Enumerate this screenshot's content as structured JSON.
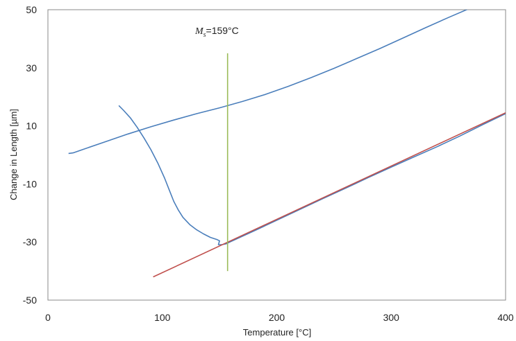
{
  "chart_data": {
    "type": "line",
    "title": "",
    "xlabel": "Temperature  [°C]",
    "ylabel": "Change in Length [µm]",
    "xlim": [
      0,
      400
    ],
    "ylim": [
      -50,
      50
    ],
    "x_ticks": [
      0,
      100,
      200,
      300,
      400
    ],
    "y_ticks": [
      -50,
      -30,
      -10,
      10,
      30,
      50
    ],
    "grid": false,
    "legend": "none",
    "annotation": {
      "symbol": "M",
      "subscript": "s",
      "text": "=159°C",
      "x": 159
    },
    "series": [
      {
        "color": "#4a7ebb",
        "points": [
          [
            18,
            0.5
          ],
          [
            22,
            0.7
          ],
          [
            30,
            1.8
          ],
          [
            50,
            4.5
          ],
          [
            70,
            7.2
          ],
          [
            90,
            9.7
          ],
          [
            110,
            12.0
          ],
          [
            130,
            14.2
          ],
          [
            150,
            16.2
          ],
          [
            170,
            18.4
          ],
          [
            190,
            20.8
          ],
          [
            210,
            23.6
          ],
          [
            230,
            26.6
          ],
          [
            250,
            29.8
          ],
          [
            270,
            33.2
          ],
          [
            290,
            36.6
          ],
          [
            310,
            40.2
          ],
          [
            330,
            43.8
          ],
          [
            350,
            47.3
          ],
          [
            370,
            50.7
          ],
          [
            387,
            53.5
          ]
        ]
      },
      {
        "color": "#4a7ebb",
        "points": [
          [
            62,
            17.0
          ],
          [
            66,
            15.4
          ],
          [
            72,
            12.8
          ],
          [
            78,
            9.5
          ],
          [
            84,
            5.8
          ],
          [
            90,
            1.8
          ],
          [
            96,
            -2.8
          ],
          [
            102,
            -8.0
          ],
          [
            106,
            -12.0
          ],
          [
            110,
            -16.0
          ],
          [
            114,
            -19.0
          ],
          [
            118,
            -21.5
          ],
          [
            124,
            -24.0
          ],
          [
            130,
            -25.8
          ],
          [
            136,
            -27.2
          ],
          [
            142,
            -28.4
          ],
          [
            148,
            -29.2
          ],
          [
            150,
            -29.6
          ],
          [
            149,
            -30.9
          ],
          [
            152,
            -30.9
          ],
          [
            156,
            -30.6
          ],
          [
            159,
            -30.0
          ],
          [
            180,
            -26.2
          ],
          [
            200,
            -22.5
          ],
          [
            220,
            -18.8
          ],
          [
            240,
            -15.1
          ],
          [
            260,
            -11.5
          ],
          [
            280,
            -7.8
          ],
          [
            300,
            -4.2
          ],
          [
            320,
            -0.7
          ],
          [
            340,
            2.8
          ],
          [
            360,
            6.5
          ],
          [
            380,
            10.4
          ],
          [
            400,
            14.2
          ]
        ]
      },
      {
        "color": "#c0504d",
        "points": [
          [
            92,
            -42.0
          ],
          [
            400,
            14.5
          ]
        ]
      },
      {
        "color": "#9bbb59",
        "points": [
          [
            157,
            35.0
          ],
          [
            157,
            -40.0
          ]
        ]
      }
    ]
  }
}
